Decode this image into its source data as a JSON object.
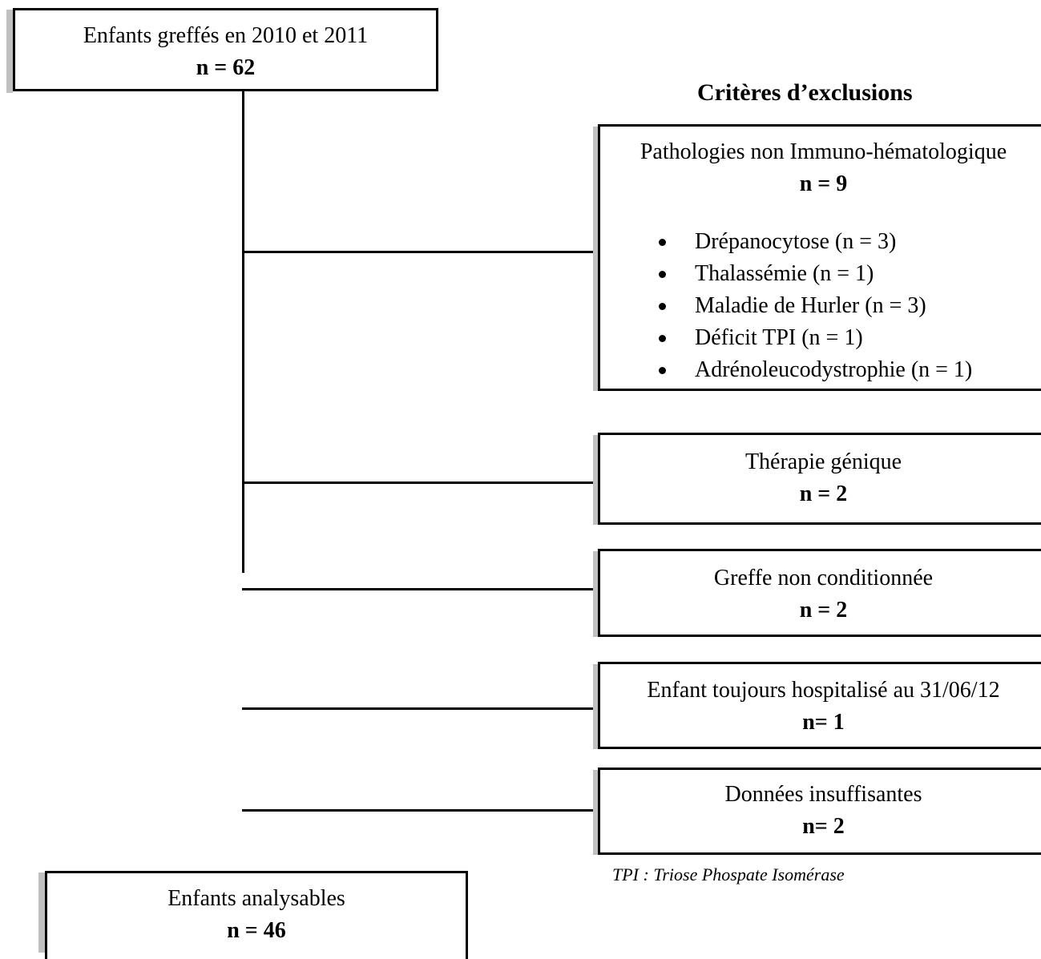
{
  "start": {
    "title": "Enfants greffés en 2010 et 2011",
    "count": "n = 62"
  },
  "criteria_heading": "Critères d’exclusions",
  "exclusions": [
    {
      "title": "Pathologies non Immuno-hématologique",
      "count": "n = 9",
      "items": [
        "Drépanocytose (n = 3)",
        "Thalassémie (n = 1)",
        "Maladie de Hurler (n = 3)",
        "Déficit TPI (n = 1)",
        "Adrénoleucodystrophie (n = 1)"
      ]
    },
    {
      "title": "Thérapie génique",
      "count": "n = 2"
    },
    {
      "title": "Greffe non conditionnée",
      "count": "n = 2"
    },
    {
      "title": "Enfant toujours hospitalisé au 31/06/12",
      "count": "n= 1"
    },
    {
      "title": "Données insuffisantes",
      "count": "n= 2"
    }
  ],
  "footnote": "TPI : Triose Phospate Isomérase",
  "end": {
    "title": "Enfants analysables",
    "count": "n = 46"
  }
}
